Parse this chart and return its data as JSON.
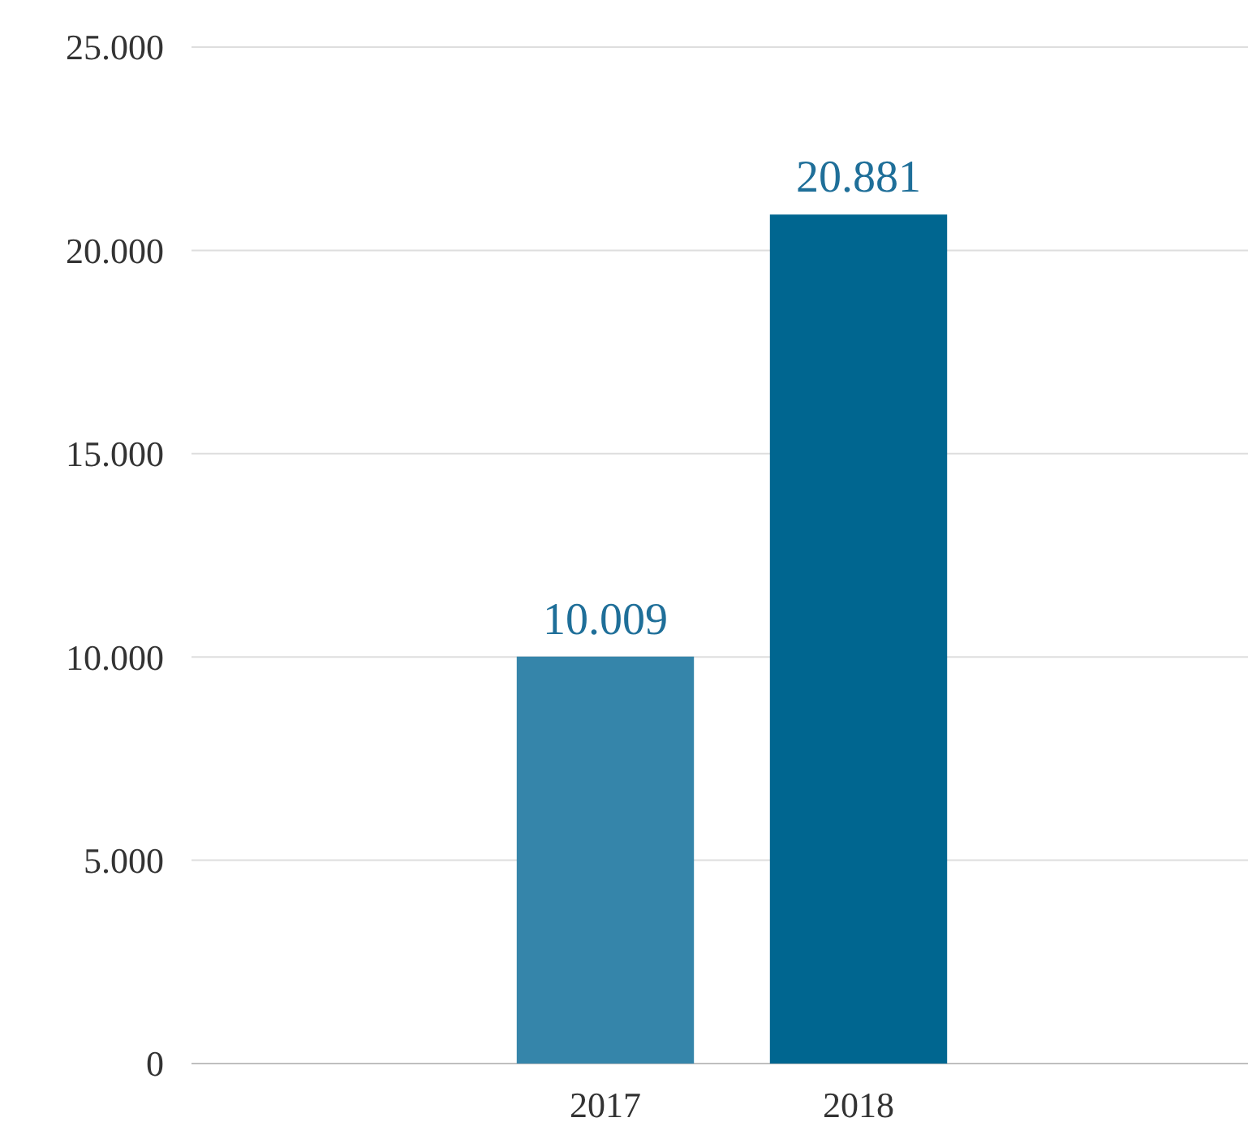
{
  "chart_data": {
    "type": "bar",
    "categories": [
      "2017",
      "2018"
    ],
    "series": [
      {
        "colors": [
          "#3585aa",
          "#006690"
        ],
        "values": [
          10009,
          20881
        ],
        "value_labels": [
          "10.009",
          "20.881"
        ]
      }
    ],
    "ylim": [
      0,
      25000
    ],
    "yticks": [
      {
        "value": 0,
        "label": "0"
      },
      {
        "value": 5000,
        "label": "5.000"
      },
      {
        "value": 10000,
        "label": "10.000"
      },
      {
        "value": 15000,
        "label": "15.000"
      },
      {
        "value": 20000,
        "label": "20.000"
      },
      {
        "value": 25000,
        "label": "25.000"
      }
    ],
    "grid": "y"
  }
}
